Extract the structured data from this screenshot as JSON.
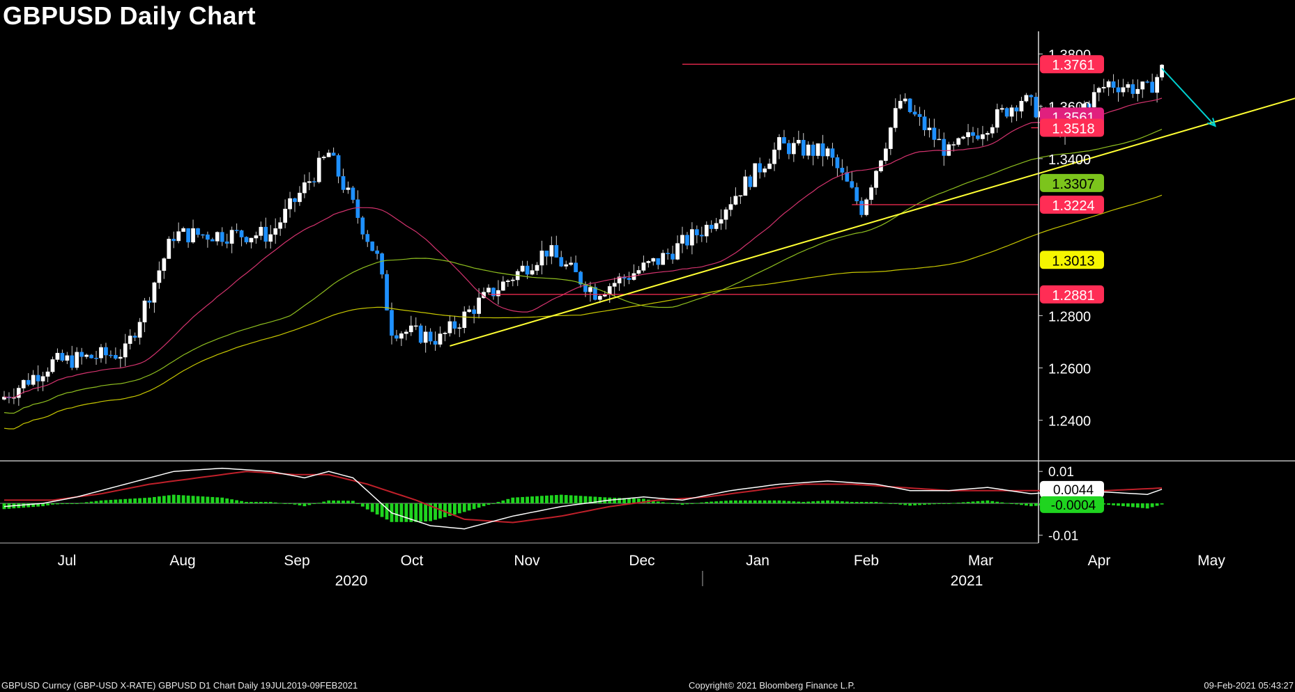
{
  "title": "GBPUSD Daily Chart",
  "footer": {
    "left": "GBPUSD Curncy (GBP-USD X-RATE) GBPUSD D1 Chart  Daily 19JUL2019-09FEB2021",
    "center": "Copyright© 2021 Bloomberg Finance L.P.",
    "right": "09-Feb-2021 05:43:27"
  },
  "colors": {
    "background": "#000000",
    "bullish_candle": "#ffffff",
    "bearish_candle": "#1e90ff",
    "trendline": "#ffff33",
    "arrow": "#00d0d0",
    "resistance": "#ff2d55",
    "ma_fast": "#d4336e",
    "ma_mid": "#8fbf1f",
    "ma_slow": "#c8c800"
  },
  "chart_data": {
    "type": "candlestick",
    "instrument": "GBPUSD",
    "x_axis": {
      "months": [
        "Jul",
        "Aug",
        "Sep",
        "Oct",
        "Nov",
        "Dec",
        "Jan",
        "Feb",
        "Mar",
        "Apr",
        "May"
      ],
      "years": [
        "2020",
        "2021"
      ]
    },
    "y_axis": {
      "ticks": [
        "1.3800",
        "1.3600",
        "1.3400",
        "1.2800",
        "1.2600",
        "1.2400"
      ],
      "range": [
        1.225,
        1.39
      ]
    },
    "price_labels": [
      {
        "text": "1.3761",
        "value": 1.3761,
        "bg": "#ff2d55",
        "fg": "#ffffff"
      },
      {
        "text": "1.3561",
        "value": 1.3561,
        "bg": "#e0207e",
        "fg": "#ffffff"
      },
      {
        "text": "1.3518",
        "value": 1.3518,
        "bg": "#ff2d55",
        "fg": "#ffffff"
      },
      {
        "text": "1.3307",
        "value": 1.3307,
        "bg": "#7cc41c",
        "fg": "#000000"
      },
      {
        "text": "1.3224",
        "value": 1.3224,
        "bg": "#ff2d55",
        "fg": "#ffffff"
      },
      {
        "text": "1.3013",
        "value": 1.3013,
        "bg": "#f5f500",
        "fg": "#000000"
      },
      {
        "text": "1.2881",
        "value": 1.2881,
        "bg": "#ff2d55",
        "fg": "#ffffff"
      }
    ],
    "horizontal_levels": [
      {
        "value": 1.3761,
        "from_day": 140
      },
      {
        "value": 1.3518,
        "from_day": 212
      },
      {
        "value": 1.3224,
        "from_day": 175
      },
      {
        "value": 1.2881,
        "from_day": 100
      }
    ],
    "trendline": {
      "start": {
        "day": 92,
        "value": 1.2684
      },
      "end": {
        "day": 273,
        "value": 1.3666
      }
    },
    "projection_arrow": {
      "start": {
        "day": 239,
        "value": 1.3745
      },
      "end": {
        "day": 250,
        "value": 1.3525
      }
    },
    "candles_summary": {
      "start_value": 1.248,
      "last_close": 1.374,
      "count": 240,
      "anchors": [
        [
          0,
          1.249
        ],
        [
          10,
          1.262
        ],
        [
          25,
          1.266
        ],
        [
          35,
          1.311
        ],
        [
          55,
          1.311
        ],
        [
          67,
          1.342
        ],
        [
          77,
          1.302
        ],
        [
          80,
          1.275
        ],
        [
          90,
          1.271
        ],
        [
          98,
          1.285
        ],
        [
          112,
          1.305
        ],
        [
          122,
          1.289
        ],
        [
          135,
          1.301
        ],
        [
          145,
          1.314
        ],
        [
          160,
          1.345
        ],
        [
          170,
          1.342
        ],
        [
          177,
          1.321
        ],
        [
          185,
          1.362
        ],
        [
          195,
          1.342
        ],
        [
          210,
          1.363
        ],
        [
          218,
          1.352
        ],
        [
          228,
          1.369
        ],
        [
          236,
          1.366
        ],
        [
          239,
          1.374
        ]
      ]
    },
    "indicator": {
      "type": "macd",
      "y_ticks": [
        "0.01",
        "-0.01"
      ],
      "labels": [
        {
          "text": "0.0044",
          "value": 0.0044,
          "bg": "#ffffff",
          "fg": "#000000"
        },
        {
          "text": "-0.0004",
          "value": -0.0004,
          "bg": "#1fd41f",
          "fg": "#000000"
        }
      ],
      "range": [
        -0.012,
        0.012
      ],
      "macd_line": [
        [
          0,
          -0.001
        ],
        [
          8,
          0.0
        ],
        [
          15,
          0.002
        ],
        [
          25,
          0.006
        ],
        [
          35,
          0.01
        ],
        [
          45,
          0.011
        ],
        [
          55,
          0.01
        ],
        [
          62,
          0.008
        ],
        [
          67,
          0.01
        ],
        [
          72,
          0.008
        ],
        [
          80,
          -0.003
        ],
        [
          88,
          -0.007
        ],
        [
          95,
          -0.008
        ],
        [
          105,
          -0.004
        ],
        [
          115,
          -0.001
        ],
        [
          125,
          0.001
        ],
        [
          132,
          0.002
        ],
        [
          140,
          0.001
        ],
        [
          150,
          0.004
        ],
        [
          160,
          0.006
        ],
        [
          170,
          0.007
        ],
        [
          180,
          0.006
        ],
        [
          187,
          0.004
        ],
        [
          195,
          0.004
        ],
        [
          203,
          0.005
        ],
        [
          212,
          0.003
        ],
        [
          220,
          0.004
        ],
        [
          228,
          0.0035
        ],
        [
          236,
          0.0028
        ],
        [
          239,
          0.0044
        ]
      ],
      "signal_line": [
        [
          0,
          0.001
        ],
        [
          10,
          0.001
        ],
        [
          20,
          0.003
        ],
        [
          30,
          0.006
        ],
        [
          40,
          0.008
        ],
        [
          50,
          0.01
        ],
        [
          60,
          0.009
        ],
        [
          67,
          0.009
        ],
        [
          75,
          0.006
        ],
        [
          85,
          0.001
        ],
        [
          95,
          -0.005
        ],
        [
          105,
          -0.006
        ],
        [
          115,
          -0.004
        ],
        [
          125,
          -0.001
        ],
        [
          135,
          0.001
        ],
        [
          145,
          0.002
        ],
        [
          155,
          0.004
        ],
        [
          165,
          0.006
        ],
        [
          175,
          0.006
        ],
        [
          185,
          0.005
        ],
        [
          195,
          0.004
        ],
        [
          205,
          0.004
        ],
        [
          215,
          0.004
        ],
        [
          225,
          0.0038
        ],
        [
          239,
          0.0048
        ]
      ]
    }
  }
}
